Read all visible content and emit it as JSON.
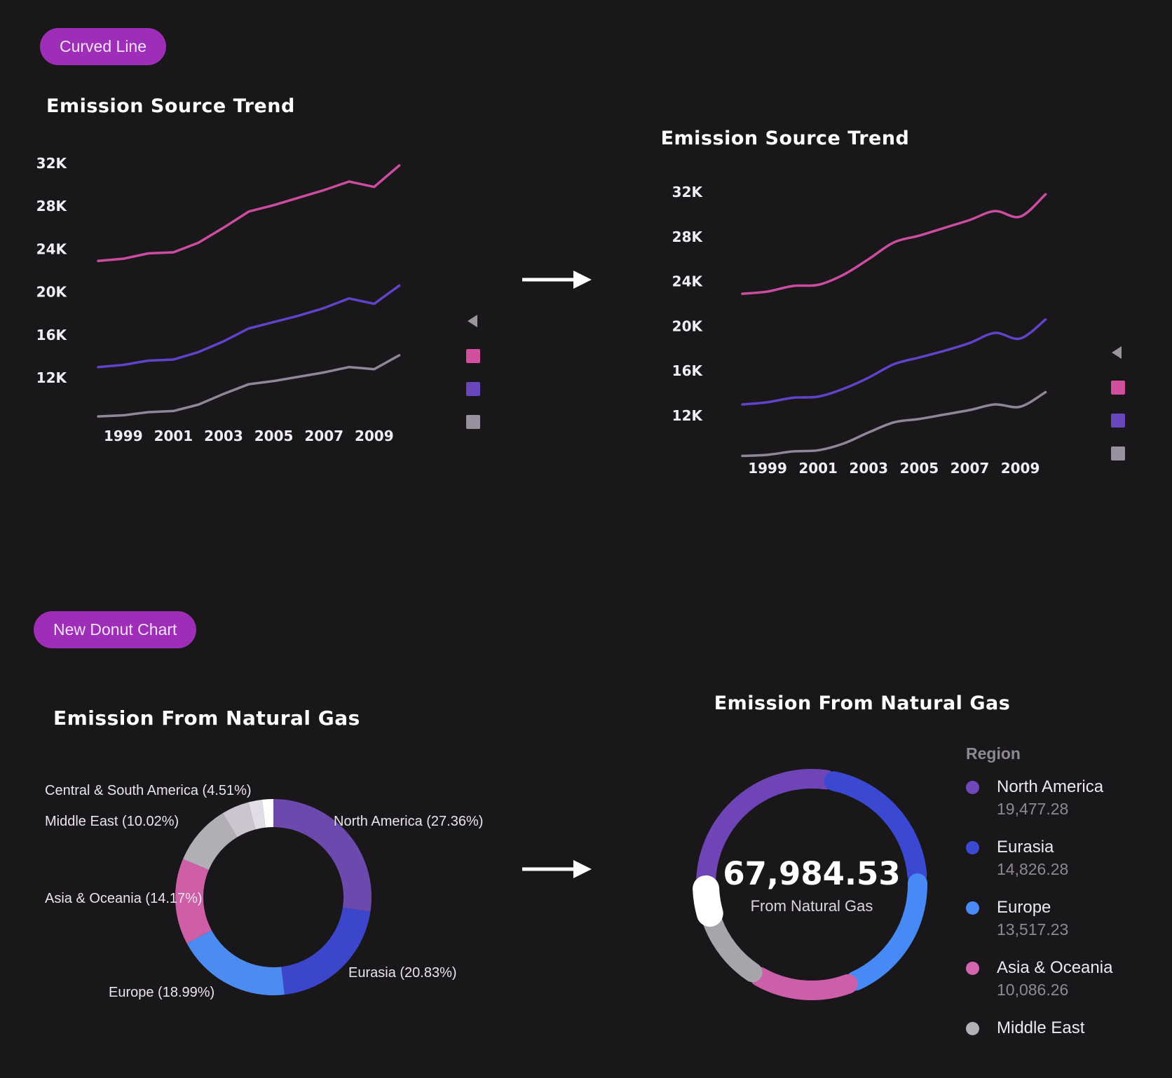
{
  "badges": {
    "curved_line": "Curved Line",
    "new_donut": "New Donut Chart",
    "badge_color": "#9e2db8"
  },
  "icons": {
    "arrow_right": "arrow-right-icon",
    "legend_collapse": "collapse-triangle-icon"
  },
  "chart_data": [
    {
      "type": "line",
      "curved": false,
      "title": "Emission Source Trend",
      "x": [
        1998,
        1999,
        2000,
        2001,
        2002,
        2003,
        2004,
        2005,
        2006,
        2007,
        2008,
        2009,
        2010
      ],
      "x_tick_labels": [
        "1999",
        "2001",
        "2003",
        "2005",
        "2007",
        "2009"
      ],
      "x_tick_values": [
        1999,
        2001,
        2003,
        2005,
        2007,
        2009
      ],
      "y_tick_labels": [
        "32K",
        "28K",
        "24K",
        "20K",
        "16K",
        "12K"
      ],
      "y_tick_values": [
        32,
        28,
        24,
        20,
        16,
        12
      ],
      "ylim": [
        8,
        33
      ],
      "grid": false,
      "legend_position": "right-collapsed",
      "series": [
        {
          "name": "series-pink",
          "color": "#cc4d9f",
          "values": [
            22.9,
            23.1,
            23.6,
            23.7,
            24.6,
            26.0,
            27.5,
            28.1,
            28.8,
            29.5,
            30.3,
            29.8,
            31.8
          ]
        },
        {
          "name": "series-purple",
          "color": "#5e44c9",
          "values": [
            13.0,
            13.2,
            13.6,
            13.7,
            14.4,
            15.4,
            16.6,
            17.2,
            17.8,
            18.5,
            19.4,
            18.9,
            20.6
          ]
        },
        {
          "name": "series-gray",
          "color": "#8e8799",
          "values": [
            8.4,
            8.5,
            8.8,
            8.9,
            9.5,
            10.5,
            11.4,
            11.7,
            12.1,
            12.5,
            13.0,
            12.8,
            14.1
          ]
        }
      ],
      "legend_marker_colors": [
        "#d14f9f",
        "#6a46bd",
        "#97909f"
      ]
    },
    {
      "type": "line",
      "curved": true,
      "title": "Emission Source Trend",
      "x": [
        1998,
        1999,
        2000,
        2001,
        2002,
        2003,
        2004,
        2005,
        2006,
        2007,
        2008,
        2009,
        2010
      ],
      "x_tick_labels": [
        "1999",
        "2001",
        "2003",
        "2005",
        "2007",
        "2009"
      ],
      "x_tick_values": [
        1999,
        2001,
        2003,
        2005,
        2007,
        2009
      ],
      "y_tick_labels": [
        "32K",
        "28K",
        "24K",
        "20K",
        "16K",
        "12K"
      ],
      "y_tick_values": [
        32,
        28,
        24,
        20,
        16,
        12
      ],
      "ylim": [
        8,
        33
      ],
      "grid": false,
      "legend_position": "right-collapsed",
      "series": [
        {
          "name": "series-pink",
          "color": "#cc4d9f",
          "values": [
            22.9,
            23.1,
            23.6,
            23.7,
            24.6,
            26.0,
            27.5,
            28.1,
            28.8,
            29.5,
            30.3,
            29.8,
            31.8
          ]
        },
        {
          "name": "series-purple",
          "color": "#5e44c9",
          "values": [
            13.0,
            13.2,
            13.6,
            13.7,
            14.4,
            15.4,
            16.6,
            17.2,
            17.8,
            18.5,
            19.4,
            18.9,
            20.6
          ]
        },
        {
          "name": "series-gray",
          "color": "#8e8799",
          "values": [
            8.4,
            8.5,
            8.8,
            8.9,
            9.5,
            10.5,
            11.4,
            11.7,
            12.1,
            12.5,
            13.0,
            12.8,
            14.1
          ]
        }
      ],
      "legend_marker_colors": [
        "#d14f9f",
        "#6a46bd",
        "#97909f"
      ]
    },
    {
      "type": "pie",
      "title": "Emission From Natural Gas",
      "slices": [
        {
          "label": "North America",
          "pct": 27.36,
          "color": "#6c49ac",
          "callout": "North America (27.36%)"
        },
        {
          "label": "Eurasia",
          "pct": 20.83,
          "color": "#3b46cb",
          "callout": "Eurasia (20.83%)"
        },
        {
          "label": "Europe",
          "pct": 18.99,
          "color": "#4c8bef",
          "callout": "Europe (18.99%)"
        },
        {
          "label": "Asia & Oceania",
          "pct": 14.17,
          "color": "#ce5ea6",
          "callout": "Asia & Oceania (14.17%)"
        },
        {
          "label": "Middle East",
          "pct": 10.02,
          "color": "#b2aeb5",
          "callout": "Middle East (10.02%)"
        },
        {
          "label": "Central & South America",
          "pct": 4.51,
          "color": "#cac5d1",
          "callout": "Central & South America (4.51%)"
        },
        {
          "label": "",
          "pct": 2.3,
          "color": "#e0dde4",
          "callout": ""
        },
        {
          "label": "",
          "pct": 1.82,
          "color": "#ffffff",
          "callout": ""
        }
      ]
    },
    {
      "type": "pie",
      "title": "Emission From Natural Gas",
      "center_value": "67,984.53",
      "center_label": "From Natural Gas",
      "legend_title": "Region",
      "legend": [
        {
          "label": "North America",
          "value": "19,477.28",
          "color": "#7148bb"
        },
        {
          "label": "Eurasia",
          "value": "14,826.28",
          "color": "#3b4ad3"
        },
        {
          "label": "Europe",
          "value": "13,517.23",
          "color": "#4b8bf5"
        },
        {
          "label": "Asia & Oceania",
          "value": "10,086.26",
          "color": "#d466ae"
        },
        {
          "label": "Middle East",
          "color": "#b3b0b6"
        }
      ],
      "segments": [
        {
          "label": "North America",
          "frac": 0.2865,
          "color": "#6f44b6"
        },
        {
          "label": "Eurasia",
          "frac": 0.2181,
          "color": "#3b49d2"
        },
        {
          "label": "Europe",
          "frac": 0.1988,
          "color": "#478af5"
        },
        {
          "label": "Asia & Oceania",
          "frac": 0.1484,
          "color": "#cb5fa9"
        },
        {
          "label": "Middle East",
          "frac": 0.1074,
          "color": "#a7a4ab"
        },
        {
          "label": "highlighted-segment",
          "frac": 0.0408,
          "color": "#ffffff",
          "highlight": true
        }
      ]
    }
  ]
}
